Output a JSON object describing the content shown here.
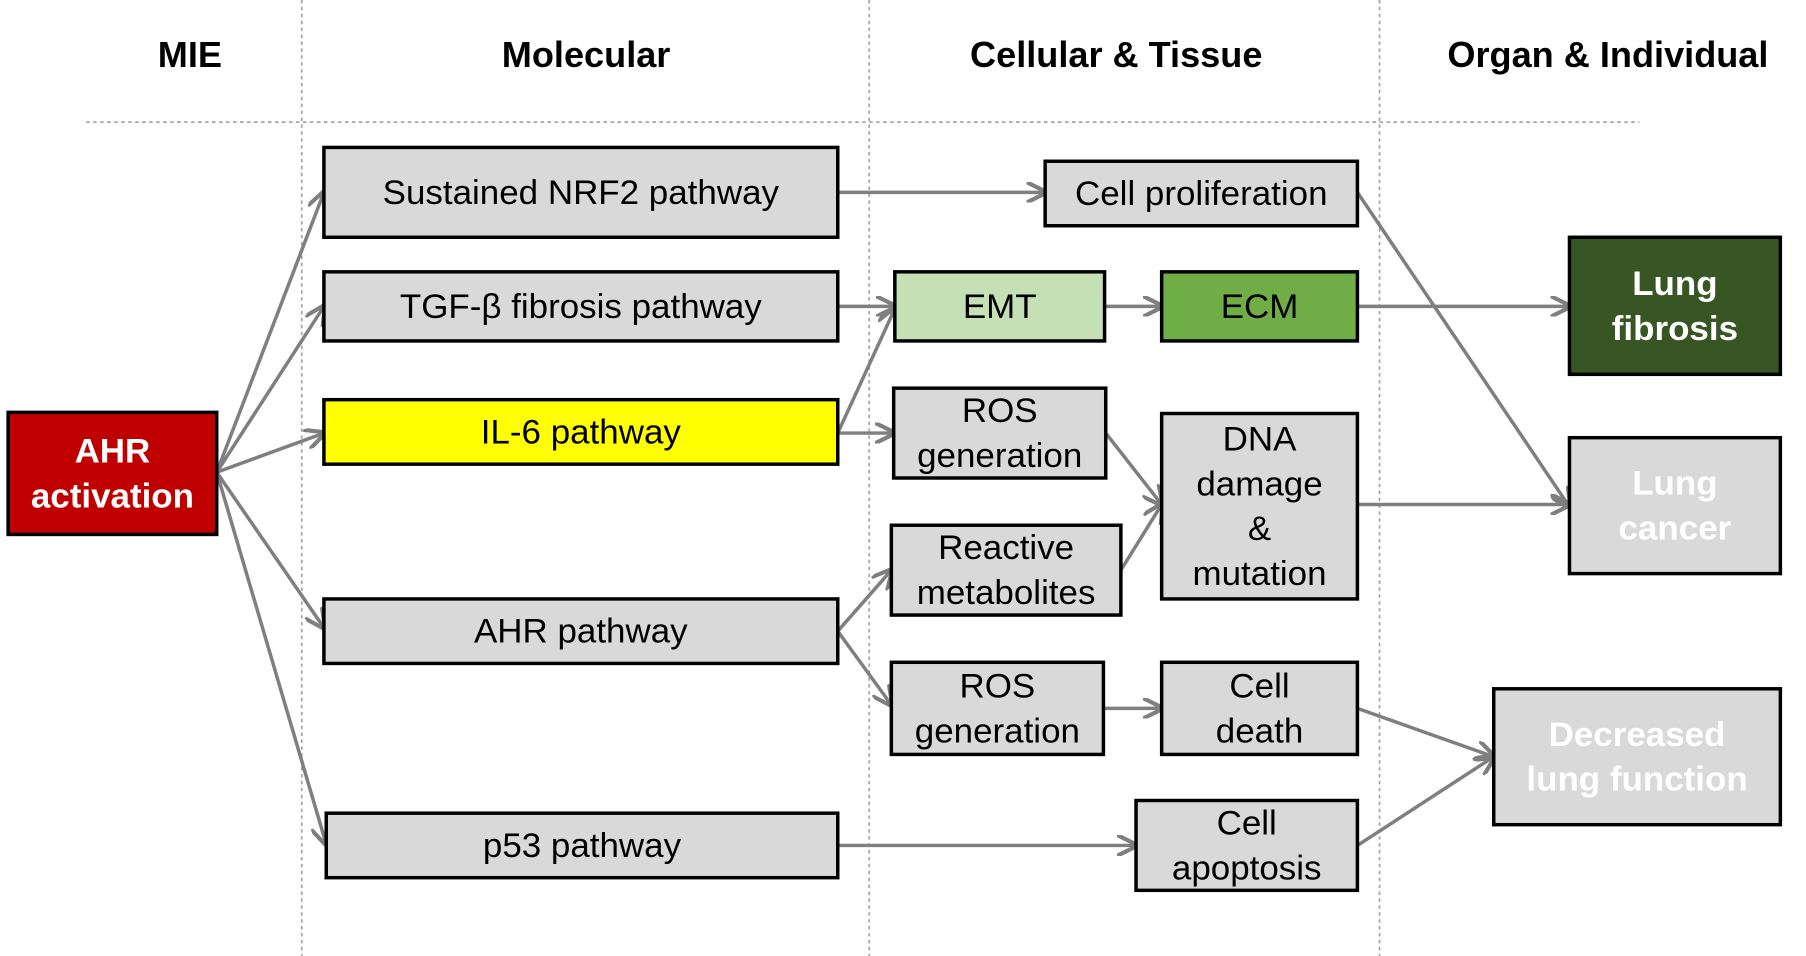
{
  "headers": [
    "MIE",
    "Molecular",
    "Cellular & Tissue",
    "Organ & Individual"
  ],
  "colors": {
    "arrow": "#7f7f7f",
    "default_box": "#d9d9d9",
    "mie": "#c00000",
    "yellow": "#ffff00",
    "light_green": "#c5e0b4",
    "green": "#70ad47",
    "dark_green": "#375623"
  },
  "nodes": {
    "ahr_activation": {
      "lines": [
        "AHR",
        "activation"
      ],
      "fill": "#c00000",
      "text": "#ffffff",
      "bold": true
    },
    "nrf2": {
      "lines": [
        "Sustained NRF2 pathway"
      ]
    },
    "tgfb": {
      "lines": [
        "TGF-β fibrosis pathway"
      ]
    },
    "il6": {
      "lines": [
        "IL-6 pathway"
      ],
      "fill": "#ffff00"
    },
    "ahr_pathway": {
      "lines": [
        "AHR pathway"
      ]
    },
    "p53": {
      "lines": [
        "p53 pathway"
      ]
    },
    "cell_proliferation": {
      "lines": [
        "Cell proliferation"
      ]
    },
    "emt": {
      "lines": [
        "EMT"
      ],
      "fill": "#c5e0b4"
    },
    "ecm": {
      "lines": [
        "ECM"
      ],
      "fill": "#70ad47"
    },
    "ros1": {
      "lines": [
        "ROS",
        "generation"
      ]
    },
    "reactive_metabolites": {
      "lines": [
        "Reactive",
        "metabolites"
      ]
    },
    "dna_damage": {
      "lines": [
        "DNA",
        "damage",
        "&",
        "mutation"
      ]
    },
    "ros2": {
      "lines": [
        "ROS",
        "generation"
      ]
    },
    "cell_death": {
      "lines": [
        "Cell",
        "death"
      ]
    },
    "cell_apoptosis": {
      "lines": [
        "Cell",
        "apoptosis"
      ]
    },
    "lung_fibrosis": {
      "lines": [
        "Lung",
        "fibrosis"
      ],
      "fill": "#375623",
      "text": "#ffffff",
      "bold": true
    },
    "lung_cancer": {
      "lines": [
        "Lung",
        "cancer"
      ],
      "text": "#ffffff",
      "bold": true
    },
    "decreased_lung_function": {
      "lines": [
        "Decreased",
        "lung function"
      ],
      "text": "#ffffff",
      "bold": true
    }
  },
  "edges": [
    [
      "ahr_activation",
      "nrf2"
    ],
    [
      "ahr_activation",
      "tgfb"
    ],
    [
      "ahr_activation",
      "il6"
    ],
    [
      "ahr_activation",
      "ahr_pathway"
    ],
    [
      "ahr_activation",
      "p53"
    ],
    [
      "nrf2",
      "cell_proliferation"
    ],
    [
      "tgfb",
      "emt"
    ],
    [
      "il6",
      "emt"
    ],
    [
      "il6",
      "ros1"
    ],
    [
      "emt",
      "ecm"
    ],
    [
      "ecm",
      "lung_fibrosis"
    ],
    [
      "cell_proliferation",
      "lung_cancer"
    ],
    [
      "ros1",
      "dna_damage"
    ],
    [
      "reactive_metabolites",
      "dna_damage"
    ],
    [
      "dna_damage",
      "lung_cancer"
    ],
    [
      "ahr_pathway",
      "reactive_metabolites"
    ],
    [
      "ahr_pathway",
      "ros2"
    ],
    [
      "ros2",
      "cell_death"
    ],
    [
      "cell_death",
      "decreased_lung_function"
    ],
    [
      "cell_apoptosis",
      "decreased_lung_function"
    ],
    [
      "p53",
      "cell_apoptosis"
    ]
  ]
}
